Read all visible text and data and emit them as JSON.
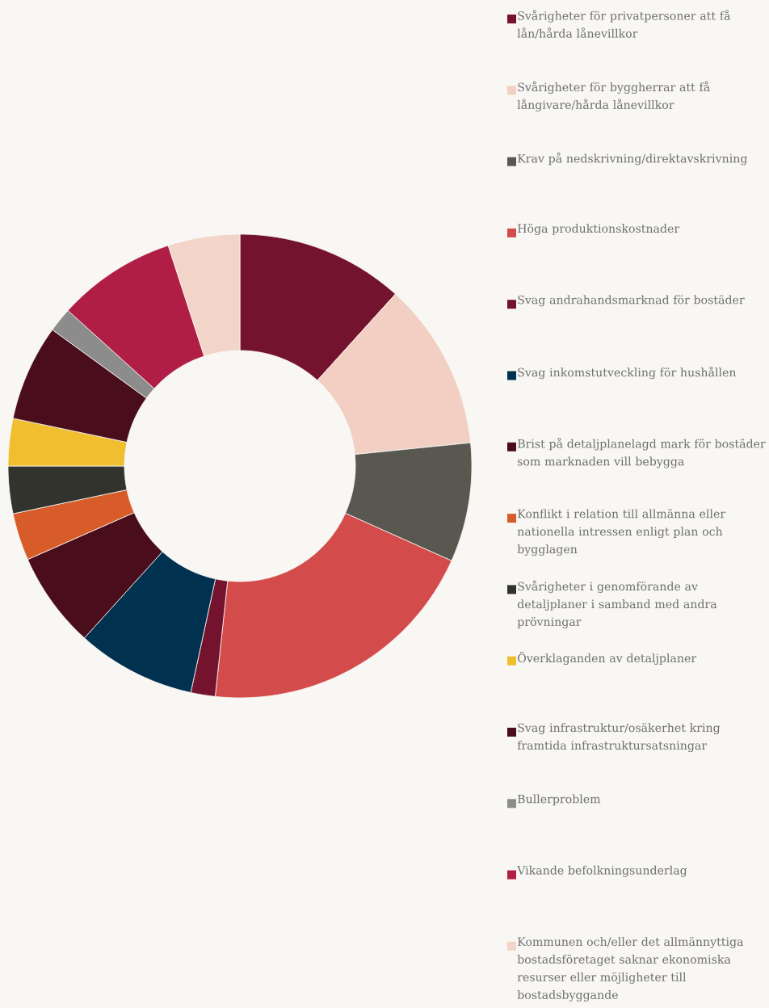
{
  "chart_data": {
    "type": "donut",
    "categories": [
      "Svårigheter för privatpersoner att få lån/hårda lånevillkor",
      "Svårigheter för byggherrar att få långivare/hårda lånevillkor",
      "Krav på nedskrivning/direktavskrivning",
      "Höga produktionskostnader",
      "Svag andrahandsmarknad för bostäder",
      "Svag inkomstutveckling för hushållen",
      "Brist på detaljplanelagd mark för bostäder som marknaden vill bebygga",
      "Konflikt i relation till allmänna eller nationella intressen enligt plan och bygglagen",
      "Svårigheter i genomförande av detaljplaner i samband med andra prövningar",
      "Överklaganden av detaljplaner",
      "Svag infrastruktur/osäkerhet kring framtida infrastruktursatsningar",
      "Bullerproblem",
      "Vikande befolkningsunderlag",
      "Kommunen och/eller det allmännyttiga bostadsföretaget saknar ekonomiska resurser eller möjligheter till bostadsbyggande"
    ],
    "values": [
      11.7,
      11.7,
      8.3,
      20,
      1.7,
      8.3,
      6.7,
      3.3,
      3.3,
      3.3,
      6.7,
      1.7,
      8.3,
      5.0
    ],
    "colors": [
      "#74132e",
      "#f2cfc2",
      "#585850",
      "#d44b4b",
      "#74132e",
      "#003250",
      "#4a0d1c",
      "#d85c2a",
      "#33332e",
      "#f0be2e",
      "#4a0d1c",
      "#8c8c8c",
      "#b01e46",
      "#f2d5c8"
    ],
    "legend": "right"
  }
}
